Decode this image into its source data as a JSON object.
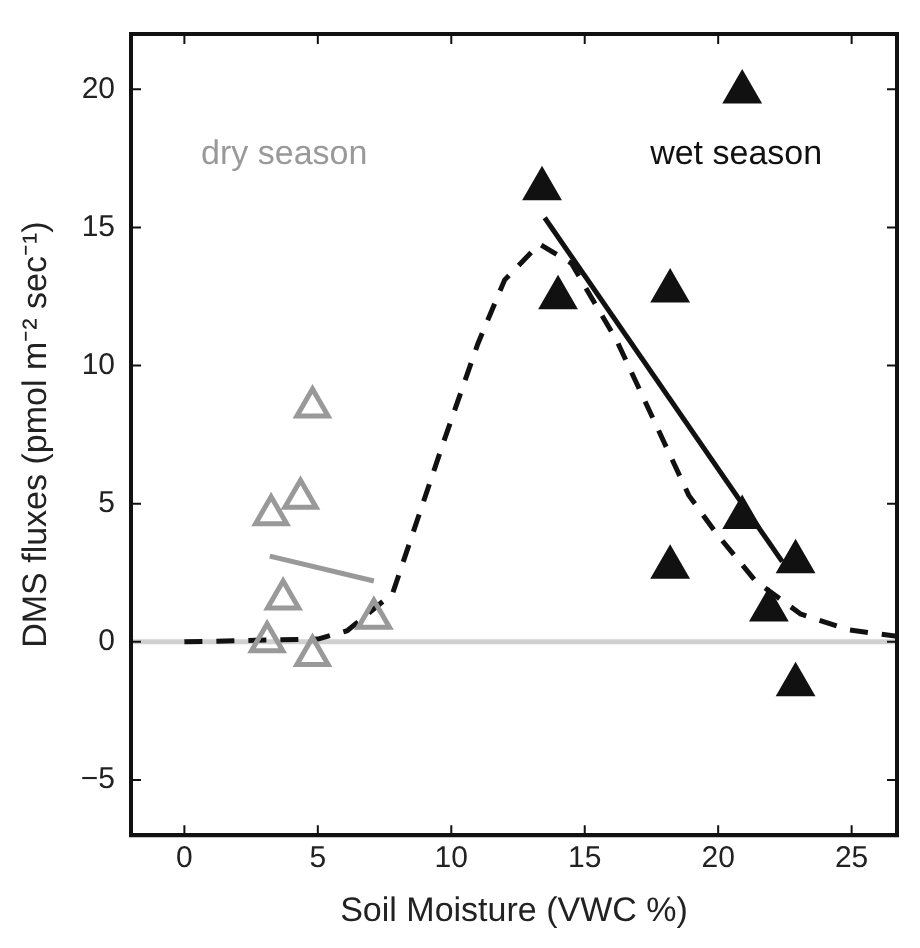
{
  "chart_data": {
    "type": "scatter",
    "xlabel": "Soil Moisture (VWC %)",
    "ylabel": "DMS fluxes (pmol m⁻² sec⁻¹)",
    "xlim": [
      -2,
      26.7
    ],
    "xticks": [
      0,
      5,
      10,
      15,
      20,
      25
    ],
    "ylim": [
      -7,
      22
    ],
    "yticks": [
      {
        "value": -5,
        "label": "−5"
      },
      0,
      5,
      10,
      15,
      20
    ],
    "grid": false,
    "legend": "top",
    "ref_lines": [
      {
        "axis": "y",
        "value": 0,
        "color": "#d0d0d0"
      }
    ],
    "series": [
      {
        "type": "line",
        "color": "#999999",
        "marker": "none",
        "line_style": "solid",
        "x": [
          3.2,
          7.1
        ],
        "values": [
          3.1,
          2.2
        ]
      },
      {
        "type": "line",
        "color": "#111111",
        "marker": "none",
        "line_style": "solid",
        "x": [
          13.5,
          22.4
        ],
        "values": [
          15.35,
          2.9
        ]
      },
      {
        "type": "line",
        "color": "#111111",
        "marker": "none",
        "line_style": "dashed",
        "x": [
          0,
          5,
          6.1,
          7.8,
          9.7,
          11,
          12,
          13.3,
          14.5,
          16.2,
          18.9,
          19.95,
          21.4,
          23.1,
          24.9,
          26.7
        ],
        "values": [
          0,
          0.1,
          0.4,
          1.75,
          7.2,
          10.8,
          13.1,
          14.4,
          13.7,
          10.9,
          5.3,
          3.9,
          2.2,
          1.0,
          0.43,
          0.2
        ]
      },
      {
        "name": "dry season",
        "color": "#999999",
        "marker": "triangle",
        "x": [
          4.8,
          4.35,
          3.25,
          3.7,
          7.1,
          3.1,
          4.8
        ],
        "values": [
          8.5,
          5.2,
          4.6,
          1.55,
          0.85,
          0,
          -0.5
        ]
      },
      {
        "name": "wet season",
        "color": "#111111",
        "marker": "triangle",
        "x": [
          20.9,
          13.4,
          14.0,
          18.2,
          20.9,
          22.9,
          18.2,
          21.9,
          22.9
        ],
        "values": [
          19.9,
          16.4,
          12.45,
          12.7,
          4.5,
          2.9,
          2.7,
          1.15,
          -1.55
        ]
      }
    ]
  }
}
